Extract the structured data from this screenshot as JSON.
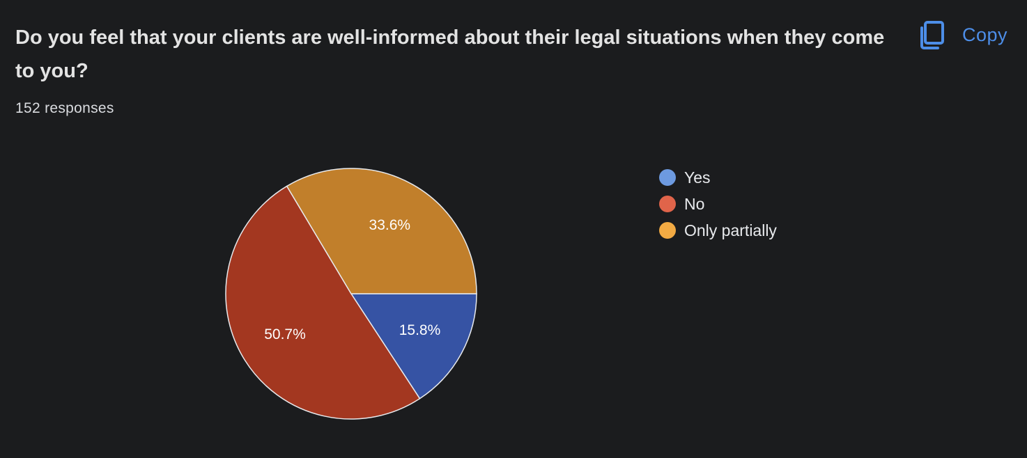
{
  "question": {
    "title": "Do you feel that your clients are well-informed about their legal situations when they come to you?",
    "response_count": "152 responses"
  },
  "toolbar": {
    "copy_label": "Copy",
    "copy_icon": "copy-icon"
  },
  "colors": {
    "background": "#1b1c1e",
    "accent": "#4d8ee8",
    "slice_border": "#e8eaed"
  },
  "chart_data": {
    "type": "pie",
    "categories": [
      "Yes",
      "No",
      "Only partially"
    ],
    "values": [
      15.8,
      50.7,
      33.6
    ],
    "data_labels": [
      "15.8%",
      "50.7%",
      "33.6%"
    ],
    "slice_colors": [
      "#3653a4",
      "#a33720",
      "#c17f2b"
    ],
    "legend_colors": [
      "#6d9ae0",
      "#e0644a",
      "#f2aa43"
    ],
    "legend_position": "right"
  }
}
